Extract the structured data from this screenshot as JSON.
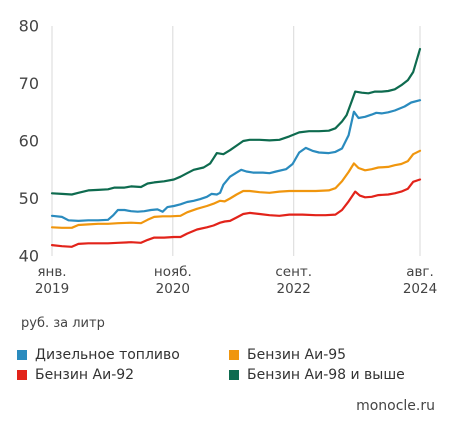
{
  "chart_data": {
    "type": "line",
    "ylim": [
      40,
      80
    ],
    "yticks": [
      40,
      50,
      60,
      70,
      80
    ],
    "ytick_labels": [
      "40",
      "50",
      "60",
      "70",
      "80"
    ],
    "xlim": [
      2019.0,
      2024.583
    ],
    "xticks": [
      {
        "x": 2019.0,
        "label": "янв.\n2019"
      },
      {
        "x": 2020.833,
        "label": "нояб.\n2020"
      },
      {
        "x": 2022.667,
        "label": "сент.\n2022"
      },
      {
        "x": 2024.583,
        "label": "авг.\n2024"
      }
    ],
    "grid": "vertical",
    "legend_position": "bottom",
    "unit_label": "руб. за литр",
    "source": "monocle.ru",
    "series": [
      {
        "name": "Дизельное топливо",
        "color": "#2A8BBE",
        "points": [
          [
            2019.0,
            47.0
          ],
          [
            2019.15,
            46.8
          ],
          [
            2019.25,
            46.2
          ],
          [
            2019.4,
            46.1
          ],
          [
            2019.55,
            46.2
          ],
          [
            2019.7,
            46.2
          ],
          [
            2019.85,
            46.3
          ],
          [
            2019.93,
            47.1
          ],
          [
            2020.0,
            48.0
          ],
          [
            2020.1,
            48.0
          ],
          [
            2020.2,
            47.8
          ],
          [
            2020.3,
            47.7
          ],
          [
            2020.4,
            47.8
          ],
          [
            2020.5,
            48.0
          ],
          [
            2020.6,
            48.1
          ],
          [
            2020.68,
            47.7
          ],
          [
            2020.75,
            48.5
          ],
          [
            2020.85,
            48.7
          ],
          [
            2020.95,
            49.0
          ],
          [
            2021.05,
            49.4
          ],
          [
            2021.15,
            49.6
          ],
          [
            2021.25,
            49.9
          ],
          [
            2021.35,
            50.3
          ],
          [
            2021.42,
            50.8
          ],
          [
            2021.5,
            50.7
          ],
          [
            2021.55,
            51.0
          ],
          [
            2021.6,
            52.4
          ],
          [
            2021.7,
            53.8
          ],
          [
            2021.8,
            54.5
          ],
          [
            2021.87,
            55.0
          ],
          [
            2021.95,
            54.7
          ],
          [
            2022.05,
            54.5
          ],
          [
            2022.2,
            54.5
          ],
          [
            2022.3,
            54.4
          ],
          [
            2022.4,
            54.7
          ],
          [
            2022.55,
            55.1
          ],
          [
            2022.65,
            56.0
          ],
          [
            2022.75,
            58.0
          ],
          [
            2022.85,
            58.8
          ],
          [
            2022.95,
            58.3
          ],
          [
            2023.05,
            58.0
          ],
          [
            2023.2,
            57.9
          ],
          [
            2023.3,
            58.1
          ],
          [
            2023.4,
            58.7
          ],
          [
            2023.5,
            61.0
          ],
          [
            2023.58,
            65.1
          ],
          [
            2023.65,
            64.0
          ],
          [
            2023.75,
            64.2
          ],
          [
            2023.85,
            64.6
          ],
          [
            2023.92,
            64.9
          ],
          [
            2024.0,
            64.8
          ],
          [
            2024.1,
            65.0
          ],
          [
            2024.2,
            65.3
          ],
          [
            2024.35,
            66.0
          ],
          [
            2024.45,
            66.7
          ],
          [
            2024.583,
            67.1
          ]
        ]
      },
      {
        "name": "Бензин Аи-95",
        "color": "#F0960E",
        "points": [
          [
            2019.0,
            45.0
          ],
          [
            2019.15,
            44.9
          ],
          [
            2019.3,
            44.9
          ],
          [
            2019.4,
            45.4
          ],
          [
            2019.55,
            45.5
          ],
          [
            2019.7,
            45.6
          ],
          [
            2019.85,
            45.6
          ],
          [
            2020.0,
            45.7
          ],
          [
            2020.2,
            45.8
          ],
          [
            2020.35,
            45.7
          ],
          [
            2020.45,
            46.3
          ],
          [
            2020.55,
            46.8
          ],
          [
            2020.68,
            46.9
          ],
          [
            2020.8,
            46.9
          ],
          [
            2020.95,
            47.0
          ],
          [
            2021.05,
            47.6
          ],
          [
            2021.2,
            48.2
          ],
          [
            2021.35,
            48.7
          ],
          [
            2021.45,
            49.1
          ],
          [
            2021.55,
            49.6
          ],
          [
            2021.62,
            49.5
          ],
          [
            2021.7,
            50.0
          ],
          [
            2021.8,
            50.7
          ],
          [
            2021.9,
            51.3
          ],
          [
            2022.0,
            51.3
          ],
          [
            2022.15,
            51.1
          ],
          [
            2022.3,
            51.0
          ],
          [
            2022.45,
            51.2
          ],
          [
            2022.6,
            51.3
          ],
          [
            2022.8,
            51.3
          ],
          [
            2023.0,
            51.3
          ],
          [
            2023.2,
            51.4
          ],
          [
            2023.3,
            51.8
          ],
          [
            2023.4,
            53.0
          ],
          [
            2023.5,
            54.6
          ],
          [
            2023.58,
            56.1
          ],
          [
            2023.65,
            55.3
          ],
          [
            2023.75,
            54.9
          ],
          [
            2023.85,
            55.1
          ],
          [
            2023.95,
            55.4
          ],
          [
            2024.1,
            55.5
          ],
          [
            2024.2,
            55.8
          ],
          [
            2024.3,
            56.0
          ],
          [
            2024.4,
            56.5
          ],
          [
            2024.48,
            57.7
          ],
          [
            2024.583,
            58.3
          ]
        ]
      },
      {
        "name": "Бензин Аи-92",
        "color": "#E2231A",
        "points": [
          [
            2019.0,
            41.9
          ],
          [
            2019.15,
            41.7
          ],
          [
            2019.3,
            41.6
          ],
          [
            2019.4,
            42.1
          ],
          [
            2019.55,
            42.2
          ],
          [
            2019.7,
            42.2
          ],
          [
            2019.85,
            42.2
          ],
          [
            2020.0,
            42.3
          ],
          [
            2020.2,
            42.4
          ],
          [
            2020.35,
            42.3
          ],
          [
            2020.45,
            42.8
          ],
          [
            2020.55,
            43.2
          ],
          [
            2020.7,
            43.2
          ],
          [
            2020.85,
            43.3
          ],
          [
            2020.95,
            43.3
          ],
          [
            2021.05,
            43.9
          ],
          [
            2021.2,
            44.6
          ],
          [
            2021.35,
            45.0
          ],
          [
            2021.45,
            45.3
          ],
          [
            2021.55,
            45.8
          ],
          [
            2021.62,
            46.0
          ],
          [
            2021.7,
            46.1
          ],
          [
            2021.8,
            46.7
          ],
          [
            2021.9,
            47.3
          ],
          [
            2022.0,
            47.5
          ],
          [
            2022.15,
            47.3
          ],
          [
            2022.3,
            47.1
          ],
          [
            2022.45,
            47.0
          ],
          [
            2022.6,
            47.2
          ],
          [
            2022.8,
            47.2
          ],
          [
            2023.0,
            47.1
          ],
          [
            2023.15,
            47.1
          ],
          [
            2023.3,
            47.2
          ],
          [
            2023.4,
            48.0
          ],
          [
            2023.5,
            49.5
          ],
          [
            2023.6,
            51.2
          ],
          [
            2023.67,
            50.5
          ],
          [
            2023.75,
            50.2
          ],
          [
            2023.85,
            50.3
          ],
          [
            2023.95,
            50.6
          ],
          [
            2024.1,
            50.7
          ],
          [
            2024.2,
            50.9
          ],
          [
            2024.3,
            51.2
          ],
          [
            2024.4,
            51.7
          ],
          [
            2024.48,
            52.9
          ],
          [
            2024.583,
            53.3
          ]
        ]
      },
      {
        "name": "Бензин Аи-98 и выше",
        "color": "#0E6B4F",
        "points": [
          [
            2019.0,
            50.9
          ],
          [
            2019.15,
            50.8
          ],
          [
            2019.3,
            50.7
          ],
          [
            2019.4,
            51.0
          ],
          [
            2019.55,
            51.4
          ],
          [
            2019.7,
            51.5
          ],
          [
            2019.85,
            51.6
          ],
          [
            2019.95,
            51.9
          ],
          [
            2020.1,
            51.9
          ],
          [
            2020.2,
            52.1
          ],
          [
            2020.35,
            52.0
          ],
          [
            2020.45,
            52.6
          ],
          [
            2020.55,
            52.8
          ],
          [
            2020.7,
            53.0
          ],
          [
            2020.85,
            53.3
          ],
          [
            2020.95,
            53.8
          ],
          [
            2021.05,
            54.4
          ],
          [
            2021.15,
            55.0
          ],
          [
            2021.3,
            55.4
          ],
          [
            2021.4,
            56.1
          ],
          [
            2021.45,
            57.0
          ],
          [
            2021.5,
            57.9
          ],
          [
            2021.6,
            57.7
          ],
          [
            2021.7,
            58.4
          ],
          [
            2021.8,
            59.2
          ],
          [
            2021.9,
            60.0
          ],
          [
            2022.0,
            60.2
          ],
          [
            2022.15,
            60.2
          ],
          [
            2022.3,
            60.1
          ],
          [
            2022.45,
            60.2
          ],
          [
            2022.6,
            60.8
          ],
          [
            2022.75,
            61.5
          ],
          [
            2022.9,
            61.7
          ],
          [
            2023.05,
            61.7
          ],
          [
            2023.2,
            61.8
          ],
          [
            2023.3,
            62.2
          ],
          [
            2023.4,
            63.4
          ],
          [
            2023.47,
            64.5
          ],
          [
            2023.55,
            67.0
          ],
          [
            2023.6,
            68.6
          ],
          [
            2023.7,
            68.4
          ],
          [
            2023.8,
            68.3
          ],
          [
            2023.9,
            68.6
          ],
          [
            2024.0,
            68.6
          ],
          [
            2024.1,
            68.7
          ],
          [
            2024.2,
            69.0
          ],
          [
            2024.3,
            69.7
          ],
          [
            2024.4,
            70.6
          ],
          [
            2024.48,
            72.0
          ],
          [
            2024.583,
            76.0
          ]
        ]
      }
    ]
  }
}
